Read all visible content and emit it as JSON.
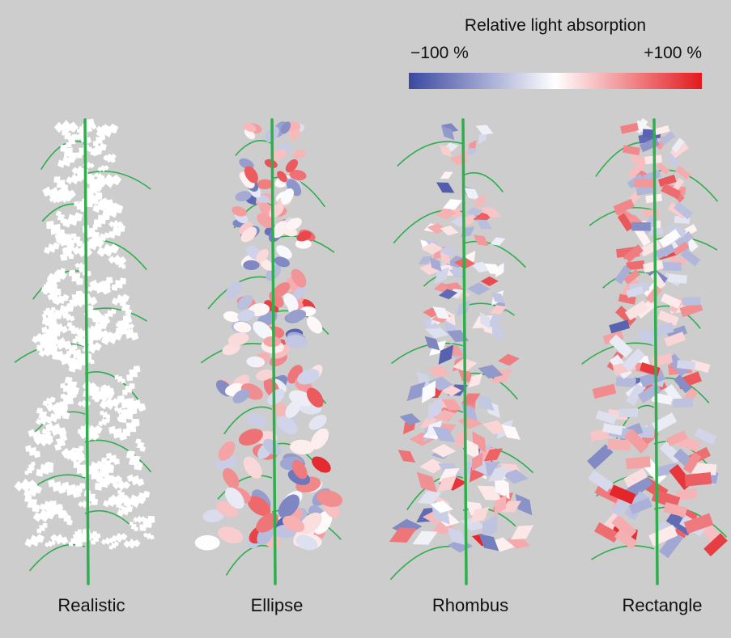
{
  "legend": {
    "title": "Relative light absorption",
    "min_label": "−100 %",
    "max_label": "+100 %",
    "colors": {
      "low": "#3a48a2",
      "mid": "#ffffff",
      "high": "#e3191e"
    }
  },
  "plants": [
    {
      "label": "Realistic",
      "leaf_shape": "realistic"
    },
    {
      "label": "Ellipse",
      "leaf_shape": "ellipse"
    },
    {
      "label": "Rhombus",
      "leaf_shape": "rhombus"
    },
    {
      "label": "Rectangle",
      "leaf_shape": "rectangle"
    }
  ],
  "colors": {
    "background": "#cdcdcd",
    "stem": "#2fae4e",
    "leaf_realistic": "#ffffff"
  }
}
